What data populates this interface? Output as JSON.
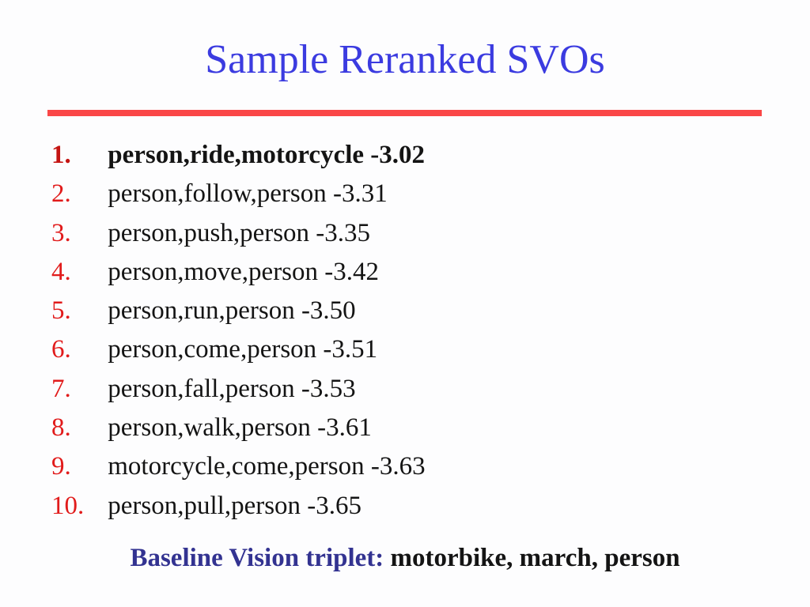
{
  "slide": {
    "title": "Sample Reranked SVOs",
    "list": {
      "items": [
        {
          "num": "1.",
          "text": "person,ride,motorcycle -3.02",
          "bold": true
        },
        {
          "num": "2.",
          "text": "person,follow,person -3.31",
          "bold": false
        },
        {
          "num": "3.",
          "text": "person,push,person -3.35",
          "bold": false
        },
        {
          "num": "4.",
          "text": "person,move,person -3.42",
          "bold": false
        },
        {
          "num": "5.",
          "text": "person,run,person -3.50",
          "bold": false
        },
        {
          "num": "6.",
          "text": "person,come,person -3.51",
          "bold": false
        },
        {
          "num": "7.",
          "text": "person,fall,person -3.53",
          "bold": false
        },
        {
          "num": "8.",
          "text": "person,walk,person -3.61",
          "bold": false
        },
        {
          "num": "9.",
          "text": "motorcycle,come,person -3.63",
          "bold": false
        },
        {
          "num": "10.",
          "text": "person,pull,person -3.65",
          "bold": false
        }
      ]
    },
    "footer": {
      "label": "Baseline Vision triplet:",
      "value": " motorbike, march, person"
    },
    "colors": {
      "title_blue": "#3b3be0",
      "footer_blue": "#333391",
      "rule_red": "#fa4747",
      "number_red": "#e11b1b",
      "number_red_bold": "#c41412",
      "text_black": "#141414"
    }
  }
}
